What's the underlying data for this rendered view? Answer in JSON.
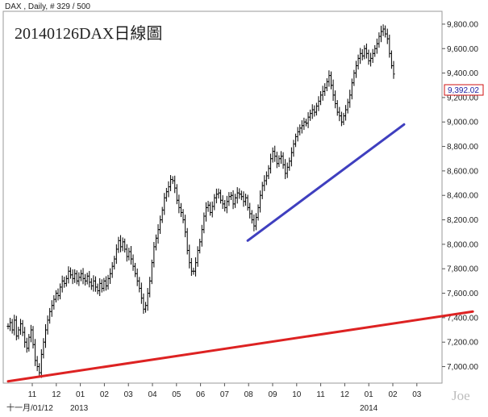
{
  "header": {
    "symbol_info": "DAX , Daily, # 329 / 500",
    "watermark": "Joe"
  },
  "chart_data": {
    "type": "ohlc",
    "title": "20140126DAX日線圖",
    "xlabel": "",
    "ylabel": "",
    "ylim": [
      6865,
      9905
    ],
    "y_ticks": [
      "7,000.00",
      "7,200.00",
      "7,400.00",
      "7,600.00",
      "7,800.00",
      "8,000.00",
      "8,200.00",
      "8,400.00",
      "8,600.00",
      "8,800.00",
      "9,000.00",
      "9,200.00",
      "9,400.00",
      "9,600.00",
      "9,800.00"
    ],
    "y_tick_values": [
      7000,
      7200,
      7400,
      7600,
      7800,
      8000,
      8200,
      8400,
      8600,
      8800,
      9000,
      9200,
      9400,
      9600,
      9800
    ],
    "month_labels": [
      "11",
      "12",
      "01",
      "02",
      "03",
      "04",
      "05",
      "06",
      "07",
      "08",
      "09",
      "10",
      "11",
      "12",
      "01",
      "02",
      "03"
    ],
    "sub_labels": [
      "十一月/01/12",
      "2013",
      "2014"
    ],
    "last_value": "9,392.02",
    "series": [
      {
        "values": [
          7330,
          7360,
          7300,
          7380,
          7250,
          7300,
          7350,
          7280,
          7200,
          7150,
          7240,
          7300,
          7180,
          7050,
          7000,
          6950,
          7100,
          7200,
          7300,
          7380,
          7450,
          7500,
          7550,
          7600,
          7580,
          7650,
          7700,
          7680,
          7720,
          7780,
          7750,
          7720,
          7760,
          7700,
          7730,
          7760,
          7720,
          7700,
          7740,
          7690,
          7660,
          7700,
          7650,
          7620,
          7680,
          7640,
          7700,
          7660,
          7720,
          7760,
          7820,
          7880,
          7960,
          8030,
          7980,
          8020,
          7960,
          7900,
          7940,
          7880,
          7820,
          7760,
          7700,
          7640,
          7560,
          7470,
          7500,
          7600,
          7700,
          7850,
          7980,
          8050,
          8120,
          8200,
          8280,
          8380,
          8430,
          8470,
          8530,
          8520,
          8460,
          8360,
          8300,
          8260,
          8200,
          8100,
          7950,
          7850,
          7780,
          7780,
          7850,
          7950,
          8020,
          8120,
          8230,
          8300,
          8320,
          8260,
          8310,
          8380,
          8410,
          8420,
          8360,
          8330,
          8300,
          8350,
          8390,
          8400,
          8330,
          8380,
          8420,
          8410,
          8390,
          8350,
          8380,
          8300,
          8250,
          8200,
          8150,
          8220,
          8300,
          8400,
          8480,
          8520,
          8560,
          8620,
          8700,
          8760,
          8720,
          8660,
          8700,
          8720,
          8650,
          8580,
          8630,
          8680,
          8750,
          8820,
          8880,
          8920,
          8950,
          8970,
          9000,
          8990,
          9040,
          9070,
          9100,
          9080,
          9130,
          9170,
          9220,
          9250,
          9280,
          9330,
          9380,
          9300,
          9220,
          9150,
          9080,
          9050,
          9000,
          9050,
          9100,
          9160,
          9220,
          9320,
          9400,
          9460,
          9520,
          9560,
          9540,
          9600,
          9560,
          9500,
          9520,
          9560,
          9600,
          9640,
          9700,
          9740,
          9760,
          9720,
          9680,
          9560,
          9460,
          9392
        ],
        "line_color": "#000000"
      }
    ],
    "trendlines": [
      {
        "color": "#dd2222",
        "from": [
          0,
          6880
        ],
        "to": [
          223,
          7450
        ]
      },
      {
        "color": "#3f3fbf",
        "from": [
          115,
          8030
        ],
        "to": [
          190,
          8980
        ]
      }
    ],
    "trendline_units_note": "",
    "legend": "none",
    "grid": false
  }
}
